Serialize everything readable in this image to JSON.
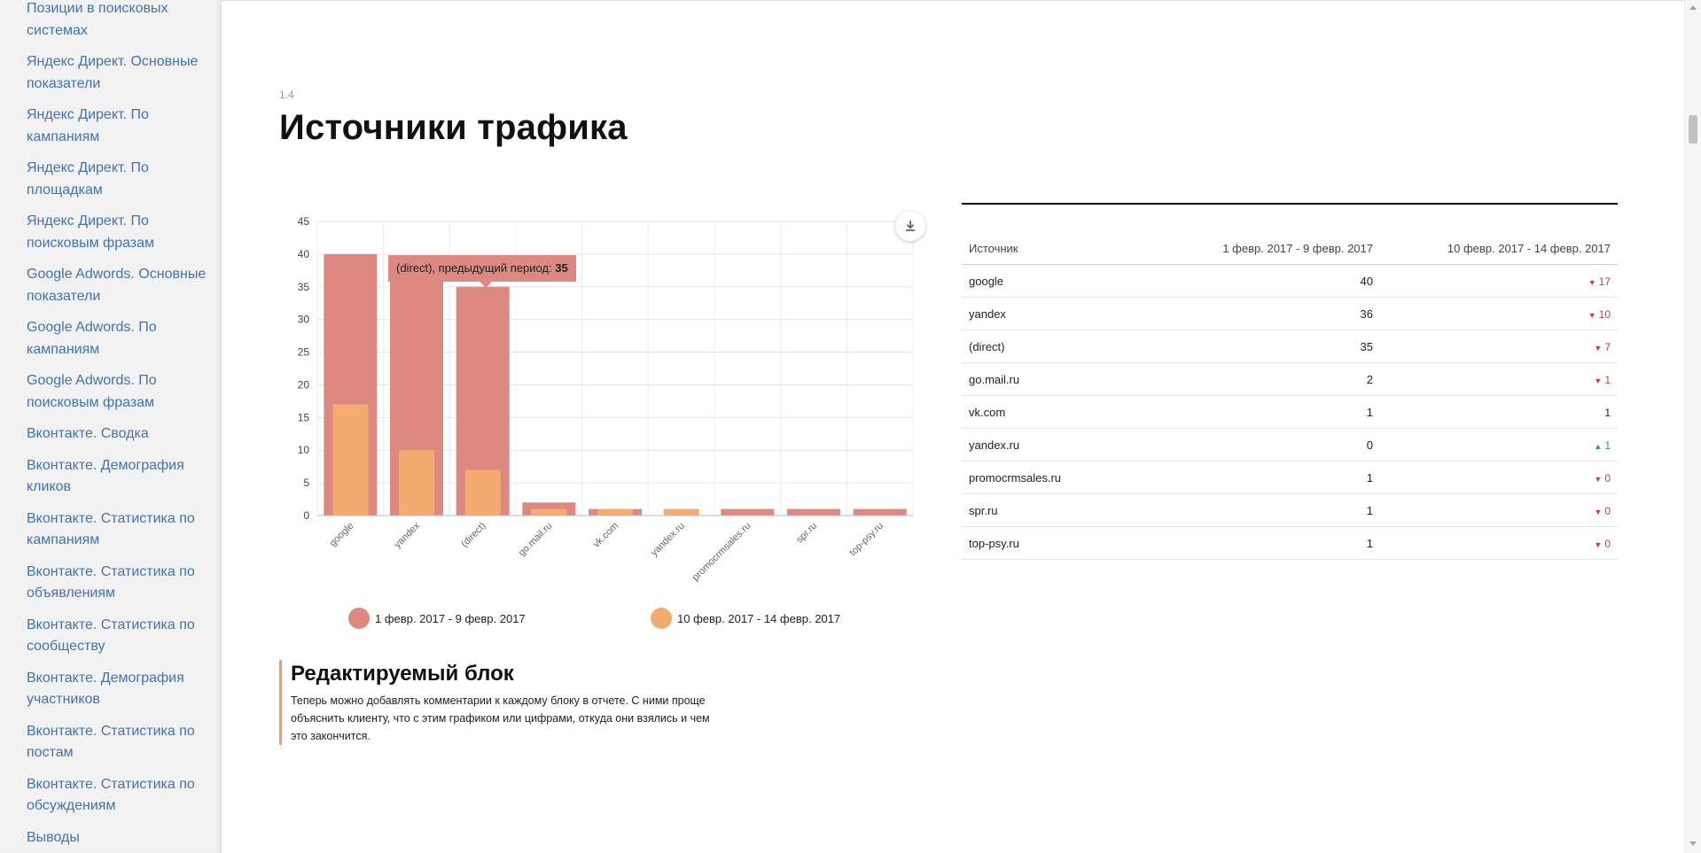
{
  "sidebar": {
    "items": [
      {
        "label": "Позиции в поисковых системах"
      },
      {
        "label": "Яндекс Директ. Основные показатели"
      },
      {
        "label": "Яндекс Директ. По кампаниям"
      },
      {
        "label": "Яндекс Директ. По площадкам"
      },
      {
        "label": "Яндекс Директ. По поисковым фразам"
      },
      {
        "label": "Google Adwords. Основные показатели"
      },
      {
        "label": "Google Adwords. По кампаниям"
      },
      {
        "label": "Google Adwords. По поисковым фразам"
      },
      {
        "label": "Вконтакте. Сводка"
      },
      {
        "label": "Вконтакте. Демография кликов"
      },
      {
        "label": "Вконтакте. Статистика по кампаниям"
      },
      {
        "label": "Вконтакте. Статистика по объявлениям"
      },
      {
        "label": "Вконтакте. Статистика по сообществу"
      },
      {
        "label": "Вконтакте. Демография участников"
      },
      {
        "label": "Вконтакте. Статистика по постам"
      },
      {
        "label": "Вконтакте. Статистика по обсуждениям"
      },
      {
        "label": "Выводы"
      }
    ]
  },
  "section": {
    "number": "1.4",
    "title": "Источники трафика"
  },
  "tooltip": {
    "label": "(direct), предыдущий период: ",
    "value": "35"
  },
  "colors": {
    "series1": "#dd8880",
    "series2": "#f4ab6f",
    "down": "#d33a2c",
    "up": "#2e9e3e",
    "accent_border": "#f0a060"
  },
  "chart_data": {
    "type": "bar",
    "categories": [
      "google",
      "yandex",
      "(direct)",
      "go.mail.ru",
      "vk.com",
      "yandex.ru",
      "promocrmsales.ru",
      "spr.ru",
      "top-psy.ru"
    ],
    "series": [
      {
        "name": "1 февр. 2017 - 9 февр. 2017",
        "values": [
          40,
          36,
          35,
          2,
          1,
          0,
          1,
          1,
          1
        ]
      },
      {
        "name": "10 февр. 2017 - 14 февр. 2017",
        "values": [
          17,
          10,
          7,
          1,
          1,
          1,
          0,
          0,
          0
        ]
      }
    ],
    "yticks": [
      "0",
      "5",
      "10",
      "15",
      "20",
      "25",
      "30",
      "35",
      "40",
      "45"
    ],
    "ylim": [
      0,
      45
    ],
    "grid": true,
    "legend_position": "bottom"
  },
  "table": {
    "headers": [
      "Источник",
      "1 февр. 2017 - 9 февр. 2017",
      "10 февр. 2017 - 14 февр. 2017"
    ],
    "rows": [
      {
        "source": "google",
        "prev": "40",
        "curr": "17",
        "trend": "down"
      },
      {
        "source": "yandex",
        "prev": "36",
        "curr": "10",
        "trend": "down"
      },
      {
        "source": "(direct)",
        "prev": "35",
        "curr": "7",
        "trend": "down"
      },
      {
        "source": "go.mail.ru",
        "prev": "2",
        "curr": "1",
        "trend": "down"
      },
      {
        "source": "vk.com",
        "prev": "1",
        "curr": "1",
        "trend": "none"
      },
      {
        "source": "yandex.ru",
        "prev": "0",
        "curr": "1",
        "trend": "up"
      },
      {
        "source": "promocrmsales.ru",
        "prev": "1",
        "curr": "0",
        "trend": "down"
      },
      {
        "source": "spr.ru",
        "prev": "1",
        "curr": "0",
        "trend": "down"
      },
      {
        "source": "top-psy.ru",
        "prev": "1",
        "curr": "0",
        "trend": "down"
      }
    ]
  },
  "edit_block": {
    "title": "Редактируемый блок",
    "text": "Теперь можно добавлять комментарии к каждому блоку в отчете. С ними проще объяснить клиенту, что с этим графиком или цифрами, откуда они взялись и чем это закончится."
  }
}
